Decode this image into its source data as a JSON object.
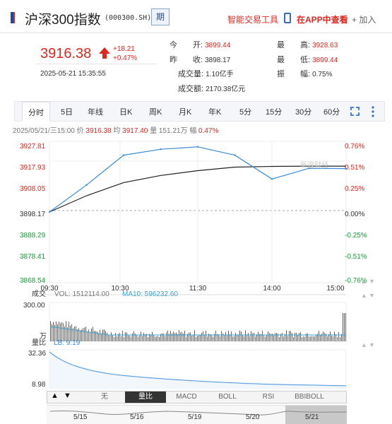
{
  "header": {
    "title": "沪深300指数",
    "code": "(000300.SH)",
    "period_btn": "期",
    "tools_link": "智能交易工具",
    "app_link": "在APP中查看",
    "add_link": "+ 加入"
  },
  "quote": {
    "price": "3916.38",
    "change": "+18.21",
    "change_pct": "+0.47%",
    "time": "2025-05-21 15:35:55",
    "stats": [
      {
        "label": "今　　开:",
        "value": "3899.44",
        "color": "red"
      },
      {
        "label": "最　　高:",
        "value": "3928.63",
        "color": "red"
      },
      {
        "label": "昨　　收:",
        "value": "3898.17",
        "color": "normal"
      },
      {
        "label": "最　　低:",
        "value": "3899.44",
        "color": "red"
      },
      {
        "label": "成交量:",
        "value": "1.10亿手",
        "color": "normal"
      },
      {
        "label": "振　　幅:",
        "value": "0.75%",
        "color": "normal"
      },
      {
        "label": "成交额:",
        "value": "2170.38亿元",
        "color": "normal"
      }
    ]
  },
  "tabs": [
    "分时",
    "5日",
    "年线",
    "日K",
    "周K",
    "月K",
    "年K",
    "5分",
    "15分",
    "30分",
    "60分"
  ],
  "infoline": {
    "date": "2025/05/21/三15:00",
    "price_label": "价",
    "price": "3916.38",
    "avg_label": "均",
    "avg": "3917.40",
    "vol_label": "量",
    "vol": "151.21万",
    "pct_label": "幅",
    "pct": "0.47%"
  },
  "chart": {
    "y_left": [
      "3927.81",
      "3917.93",
      "3908.05",
      "3898.17",
      "3888.29",
      "3878.41",
      "3868.54"
    ],
    "y_right": [
      "0.76%",
      "0.51%",
      "0.25%",
      "0.00%",
      "-0.25%",
      "-0.51%",
      "-0.76%"
    ],
    "x_labels": [
      "09:30",
      "10:30",
      "11:30",
      "14:00",
      "15:00"
    ],
    "vol_panel": {
      "title": "成交",
      "vol_label": "VOL: 1512114.00",
      "ma_label": "MA10: 596232.60",
      "max": "300.00",
      "unit": "万"
    },
    "lb_panel": {
      "title": "量比",
      "lb_label": "LB: 9.19",
      "max": "32.36",
      "min": "8.98"
    }
  },
  "chart_data": {
    "type": "line",
    "x": [
      "09:30",
      "10:00",
      "10:30",
      "11:00",
      "11:30",
      "13:30",
      "14:00",
      "14:30",
      "15:00"
    ],
    "series": [
      {
        "values": [
          3898.17,
          3909.5,
          3922.0,
          3924.5,
          3925.5,
          3922.0,
          3912.0,
          3916.5,
          3916.38
        ]
      },
      {
        "values": [
          3898.17,
          3905.0,
          3910.5,
          3913.5,
          3915.5,
          3917.0,
          3917.3,
          3917.4,
          3917.4
        ]
      }
    ],
    "ylim": [
      3868.54,
      3927.81
    ]
  },
  "bottombar": [
    "无",
    "量比",
    "MACD",
    "BOLL",
    "RSI",
    "BBIBOLL"
  ],
  "timeline": [
    "5/15",
    "5/16",
    "5/19",
    "5/20",
    "5/21"
  ],
  "colors": {
    "up": "#e0271f",
    "down": "#1a9a3a",
    "price_line": "#3a8ad8",
    "avg_line": "#222222"
  }
}
